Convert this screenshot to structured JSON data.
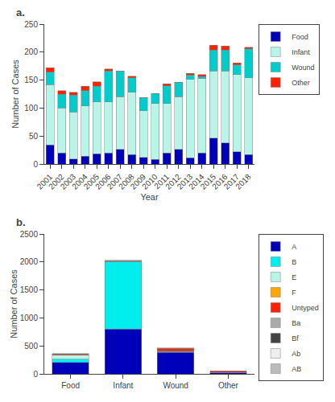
{
  "chart_data": [
    {
      "type": "bar",
      "title": "a.",
      "stacked": true,
      "categories": [
        "2001",
        "2002",
        "2003",
        "2004",
        "2005",
        "2006",
        "2007",
        "2008",
        "2009",
        "2010",
        "2011",
        "2012",
        "2013",
        "2014",
        "2015",
        "2016",
        "2017",
        "2018"
      ],
      "series": [
        {
          "name": "Food",
          "color": "#0000BB",
          "values": [
            34,
            20,
            9,
            14,
            18,
            20,
            26,
            17,
            12,
            8,
            20,
            26,
            11,
            20,
            46,
            38,
            22,
            17
          ]
        },
        {
          "name": "Infant",
          "color": "#B8F5E8",
          "values": [
            108,
            80,
            84,
            90,
            93,
            91,
            94,
            111,
            83,
            100,
            88,
            94,
            140,
            133,
            120,
            128,
            138,
            137
          ]
        },
        {
          "name": "Wound",
          "color": "#00CCCC",
          "values": [
            22,
            25,
            30,
            27,
            28,
            55,
            46,
            26,
            24,
            18,
            32,
            26,
            8,
            3,
            38,
            38,
            17,
            52
          ]
        },
        {
          "name": "Other",
          "color": "#FF2200",
          "values": [
            8,
            6,
            5,
            8,
            8,
            4,
            0,
            3,
            0,
            0,
            3,
            0,
            3,
            4,
            8,
            7,
            4,
            3
          ]
        }
      ],
      "xlabel": "Year",
      "ylabel": "Number of Cases",
      "ylim": [
        0,
        250
      ],
      "yticks": [
        0,
        50,
        100,
        150,
        200,
        250
      ],
      "grid": false,
      "legend": "right"
    },
    {
      "type": "bar",
      "title": "b.",
      "stacked": true,
      "categories": [
        "Food",
        "Infant",
        "Wound",
        "Other"
      ],
      "series": [
        {
          "name": "A",
          "color": "#0000BB",
          "values": [
            205,
            800,
            385,
            18
          ]
        },
        {
          "name": "B",
          "color": "#00EEEE",
          "values": [
            60,
            1200,
            15,
            5
          ]
        },
        {
          "name": "E",
          "color": "#B8F5E8",
          "values": [
            68,
            5,
            5,
            3
          ]
        },
        {
          "name": "F",
          "color": "#FFA500",
          "values": [
            4,
            0,
            2,
            0
          ]
        },
        {
          "name": "Untyped",
          "color": "#FF2200",
          "values": [
            12,
            5,
            42,
            18
          ]
        },
        {
          "name": "Ba",
          "color": "#AAAAAA",
          "values": [
            3,
            3,
            2,
            1
          ]
        },
        {
          "name": "Bf",
          "color": "#444444",
          "values": [
            3,
            5,
            3,
            1
          ]
        },
        {
          "name": "Ab",
          "color": "#EEEEEE",
          "values": [
            4,
            4,
            4,
            1
          ]
        },
        {
          "name": "AB",
          "color": "#BBBBBB",
          "values": [
            4,
            4,
            4,
            1
          ]
        }
      ],
      "ylabel": "Number of Cases",
      "ylim": [
        0,
        2500
      ],
      "yticks": [
        0,
        500,
        1000,
        1500,
        2000,
        2500
      ],
      "grid": false,
      "legend": "right"
    }
  ]
}
